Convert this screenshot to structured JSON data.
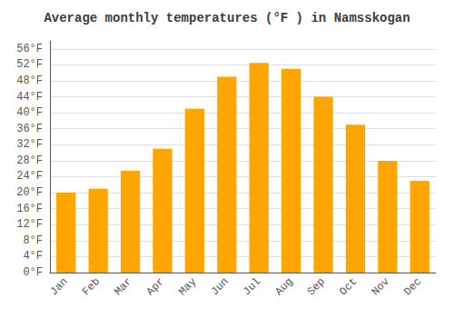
{
  "chart_data": {
    "type": "bar",
    "title": "Average monthly temperatures (°F ) in Namsskogan",
    "categories": [
      "Jan",
      "Feb",
      "Mar",
      "Apr",
      "May",
      "Jun",
      "Jul",
      "Aug",
      "Sep",
      "Oct",
      "Nov",
      "Dec"
    ],
    "values": [
      20.0,
      21.0,
      25.5,
      31.0,
      41.0,
      49.0,
      52.5,
      51.0,
      44.0,
      37.0,
      28.0,
      23.0
    ],
    "color": "#FFA500",
    "ylim": [
      0,
      58
    ],
    "yticks": [
      {
        "value": 0,
        "label": "0°F"
      },
      {
        "value": 4,
        "label": "4°F"
      },
      {
        "value": 8,
        "label": "8°F"
      },
      {
        "value": 12,
        "label": "12°F"
      },
      {
        "value": 16,
        "label": "16°F"
      },
      {
        "value": 20,
        "label": "20°F"
      },
      {
        "value": 24,
        "label": "24°F"
      },
      {
        "value": 28,
        "label": "28°F"
      },
      {
        "value": 32,
        "label": "32°F"
      },
      {
        "value": 36,
        "label": "36°F"
      },
      {
        "value": 40,
        "label": "40°F"
      },
      {
        "value": 44,
        "label": "44°F"
      },
      {
        "value": 48,
        "label": "48°F"
      },
      {
        "value": 52,
        "label": "52°F"
      },
      {
        "value": 56,
        "label": "56°F"
      }
    ],
    "grid": true
  }
}
